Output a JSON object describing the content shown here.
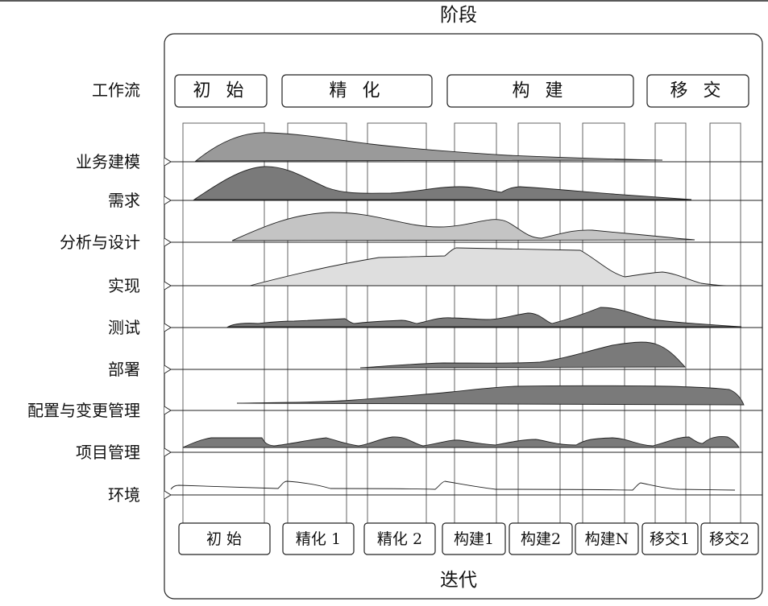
{
  "title_top": "阶段",
  "title_bottom": "迭代",
  "workflow_header": "工作流",
  "phases": [
    "初 始",
    "精 化",
    "构 建",
    "移 交"
  ],
  "iterations": [
    "初 始",
    "精化 1",
    "精化 2",
    "构建1",
    "构建2",
    "构建N",
    "移交1",
    "移交2"
  ],
  "disciplines": [
    "业务建模",
    "需求",
    "分析与设计",
    "实现",
    "测试",
    "部署",
    "配置与变更管理",
    "项目管理",
    "环境"
  ],
  "colors": {
    "dark": "#7a7a7a",
    "medium": "#9a9a9a",
    "light": "#c4c4c4",
    "lighter": "#dedede",
    "line": "#222222"
  }
}
